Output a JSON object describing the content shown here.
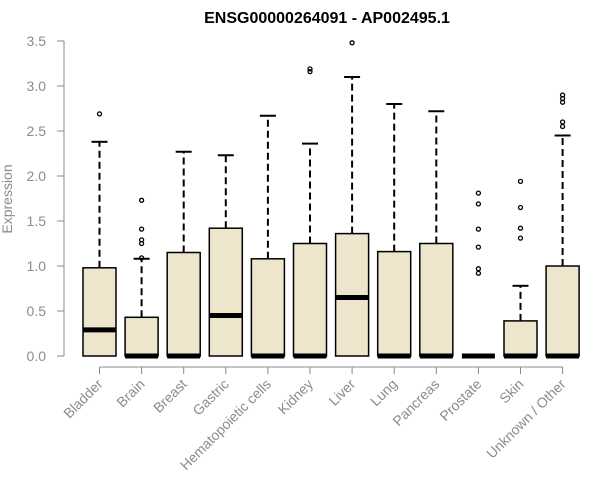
{
  "chart_data": {
    "type": "boxplot",
    "title": "ENSG00000264091 - AP002495.1",
    "ylabel": "Expression",
    "xlabel": "",
    "ylim": [
      0,
      3.5
    ],
    "yticks": [
      "0.0",
      "0.5",
      "1.0",
      "1.5",
      "2.0",
      "2.5",
      "3.0",
      "3.5"
    ],
    "grid": false,
    "legend": "none",
    "categories": [
      "Bladder",
      "Brain",
      "Breast",
      "Gastric",
      "Hematopoietic cells",
      "Kidney",
      "Liver",
      "Lung",
      "Pancreas",
      "Prostate",
      "Skin",
      "Unknown / Other"
    ],
    "boxes": [
      {
        "min": 0.0,
        "q1": 0.0,
        "median": 0.29,
        "q3": 0.98,
        "max": 2.38,
        "outliers": [
          2.69
        ]
      },
      {
        "min": 0.0,
        "q1": 0.0,
        "median": 0.0,
        "q3": 0.43,
        "max": 1.08,
        "outliers": [
          1.09,
          1.25,
          1.29,
          1.41,
          1.73
        ]
      },
      {
        "min": 0.0,
        "q1": 0.0,
        "median": 0.0,
        "q3": 1.15,
        "max": 2.27,
        "outliers": []
      },
      {
        "min": 0.0,
        "q1": 0.0,
        "median": 0.45,
        "q3": 1.42,
        "max": 2.23,
        "outliers": []
      },
      {
        "min": 0.0,
        "q1": 0.0,
        "median": 0.0,
        "q3": 1.08,
        "max": 2.67,
        "outliers": []
      },
      {
        "min": 0.0,
        "q1": 0.0,
        "median": 0.0,
        "q3": 1.25,
        "max": 2.36,
        "outliers": [
          3.16,
          3.19
        ]
      },
      {
        "min": 0.0,
        "q1": 0.0,
        "median": 0.65,
        "q3": 1.36,
        "max": 3.1,
        "outliers": [
          3.48
        ]
      },
      {
        "min": 0.0,
        "q1": 0.0,
        "median": 0.0,
        "q3": 1.16,
        "max": 2.8,
        "outliers": []
      },
      {
        "min": 0.0,
        "q1": 0.0,
        "median": 0.0,
        "q3": 1.25,
        "max": 2.72,
        "outliers": []
      },
      {
        "min": 0.0,
        "q1": 0.0,
        "median": 0.0,
        "q3": 0.0,
        "max": 0.0,
        "outliers": [
          0.92,
          0.97,
          1.21,
          1.41,
          1.69,
          1.81
        ]
      },
      {
        "min": 0.0,
        "q1": 0.0,
        "median": 0.0,
        "q3": 0.39,
        "max": 0.78,
        "outliers": [
          1.31,
          1.42,
          1.65,
          1.94
        ]
      },
      {
        "min": 0.0,
        "q1": 0.0,
        "median": 0.0,
        "q3": 1.0,
        "max": 2.45,
        "outliers": [
          2.55,
          2.6,
          2.82,
          2.86,
          2.9
        ]
      }
    ],
    "colors": {
      "box_fill": "#ede6cc",
      "box_stroke": "#000000",
      "median": "#000000",
      "axis": "#888888",
      "axis_text": "#8c8c8c",
      "title": "#000000"
    }
  }
}
